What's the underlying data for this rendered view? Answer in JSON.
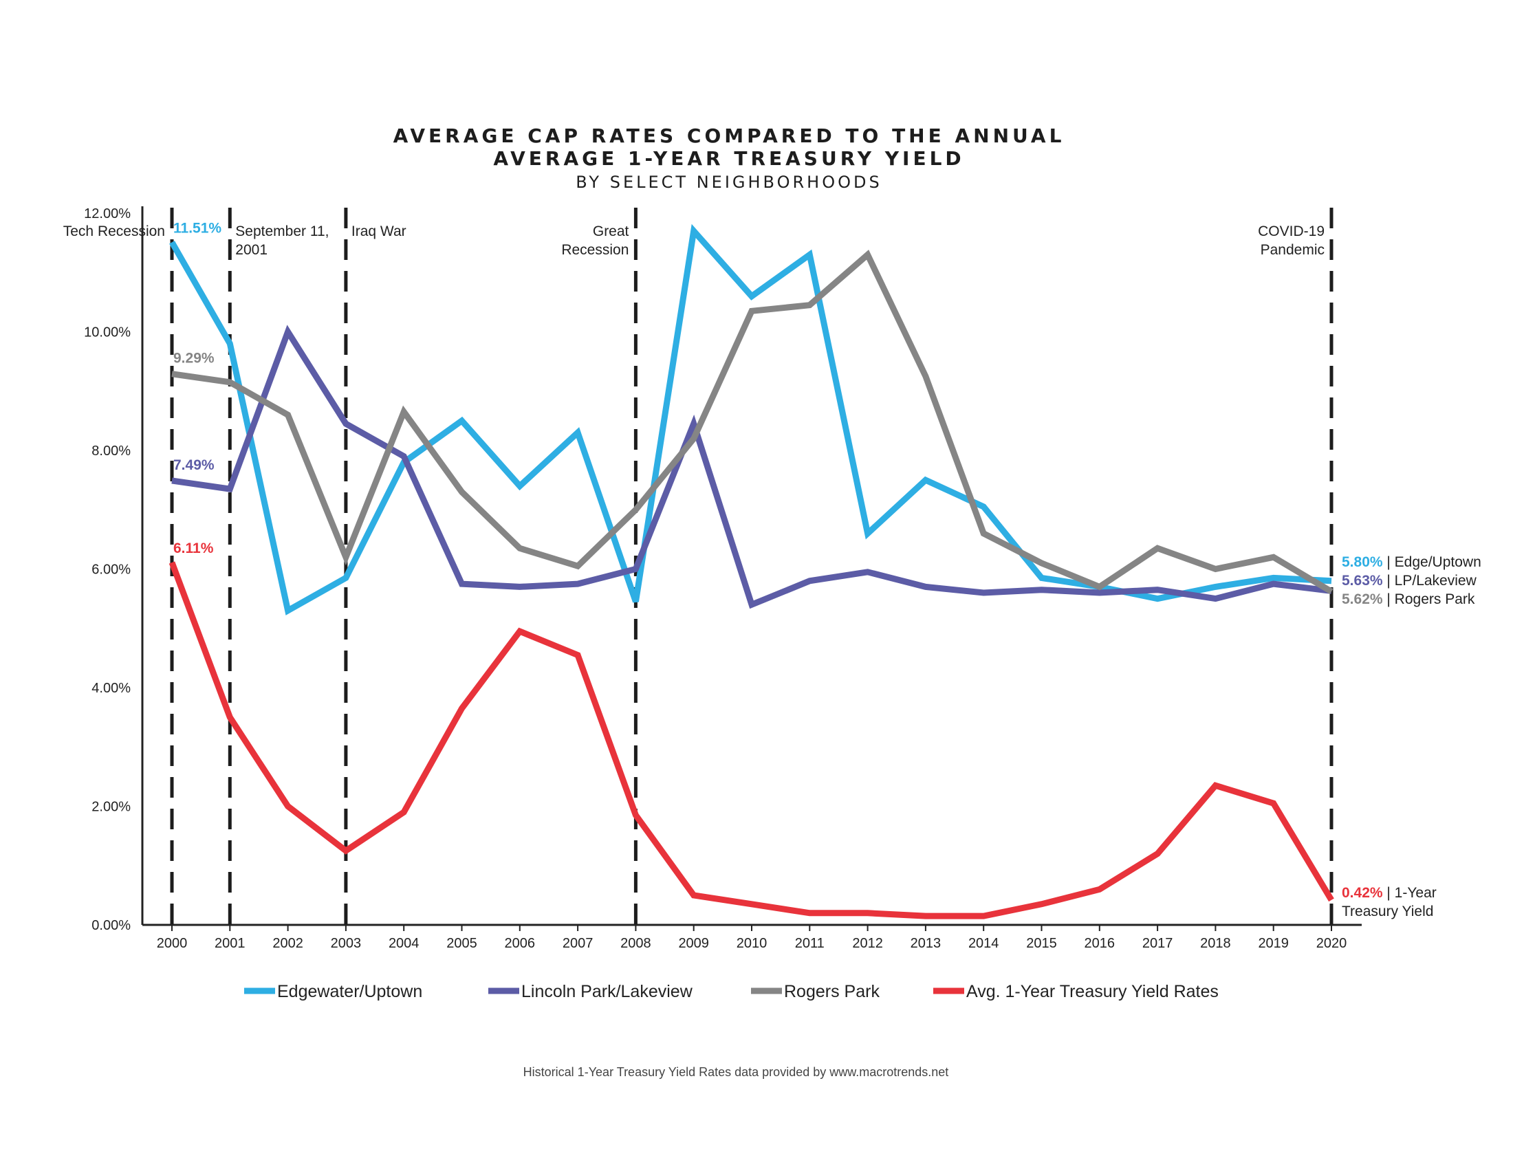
{
  "title": {
    "line1": "AVERAGE CAP RATES COMPARED TO THE ANNUAL",
    "line2": "AVERAGE 1-YEAR TREASURY YIELD",
    "subtitle": "BY SELECT NEIGHBORHOODS"
  },
  "source_note": "Historical 1-Year Treasury Yield Rates data provided by www.macrotrends.net",
  "colors": {
    "edgewater": "#2eaee3",
    "lincoln": "#5c5ca6",
    "rogers": "#858585",
    "treasury": "#e8333b",
    "axis": "#222222"
  },
  "chart_data": {
    "type": "line",
    "x": [
      2000,
      2001,
      2002,
      2003,
      2004,
      2005,
      2006,
      2007,
      2008,
      2009,
      2010,
      2011,
      2012,
      2013,
      2014,
      2015,
      2016,
      2017,
      2018,
      2019,
      2020
    ],
    "ylim": [
      0,
      12
    ],
    "y_ticks": [
      "0.00%",
      "2.00%",
      "4.00%",
      "6.00%",
      "8.00%",
      "10.00%",
      "12.00%"
    ],
    "y_tick_values": [
      0,
      2,
      4,
      6,
      8,
      10,
      12
    ],
    "series": [
      {
        "name": "Edgewater/Uptown",
        "color_key": "edgewater",
        "values": [
          11.51,
          9.8,
          5.3,
          5.85,
          7.8,
          8.5,
          7.4,
          8.3,
          5.45,
          11.7,
          10.6,
          11.3,
          6.6,
          7.5,
          7.05,
          5.85,
          5.7,
          5.5,
          5.7,
          5.85,
          5.8
        ]
      },
      {
        "name": "Lincoln Park/Lakeview",
        "color_key": "lincoln",
        "values": [
          7.49,
          7.35,
          10.0,
          8.45,
          7.9,
          5.75,
          5.7,
          5.75,
          6.0,
          8.45,
          5.4,
          5.8,
          5.95,
          5.7,
          5.6,
          5.65,
          5.6,
          5.65,
          5.5,
          5.75,
          5.63
        ]
      },
      {
        "name": "Rogers Park",
        "color_key": "rogers",
        "values": [
          9.29,
          9.15,
          8.6,
          6.2,
          8.65,
          7.3,
          6.35,
          6.05,
          7.0,
          8.2,
          10.35,
          10.45,
          11.3,
          9.25,
          6.6,
          6.1,
          5.7,
          6.35,
          6.0,
          6.2,
          5.62
        ]
      },
      {
        "name": "Avg. 1-Year Treasury Yield Rates",
        "color_key": "treasury",
        "values": [
          6.11,
          3.5,
          2.0,
          1.25,
          1.9,
          3.65,
          4.95,
          4.55,
          1.85,
          0.5,
          0.35,
          0.2,
          0.2,
          0.15,
          0.15,
          0.35,
          0.6,
          1.2,
          2.35,
          2.05,
          0.42
        ]
      }
    ],
    "events": [
      {
        "year": 2000,
        "lines": [
          "Tech Recession"
        ],
        "side": "left"
      },
      {
        "year": 2001,
        "lines": [
          "September 11,",
          "2001"
        ],
        "side": "right"
      },
      {
        "year": 2003,
        "lines": [
          "Iraq War"
        ],
        "side": "right"
      },
      {
        "year": 2008,
        "lines": [
          "Great",
          "Recession"
        ],
        "side": "left"
      },
      {
        "year": 2020,
        "lines": [
          "COVID-19",
          "Pandemic"
        ],
        "side": "left"
      }
    ],
    "start_labels": [
      {
        "text": "11.51%",
        "series": 0
      },
      {
        "text": "9.29%",
        "series": 2
      },
      {
        "text": "7.49%",
        "series": 1
      },
      {
        "text": "6.11%",
        "series": 3
      }
    ],
    "end_labels": [
      {
        "value": "5.80%",
        "suffix": " | Edge/Uptown",
        "series": 0
      },
      {
        "value": "5.63%",
        "suffix": " | LP/Lakeview",
        "series": 1
      },
      {
        "value": "5.62%",
        "suffix": " | Rogers Park",
        "series": 2
      },
      {
        "value": "0.42%",
        "suffix": " | 1-Year",
        "suffix2": "Treasury Yield",
        "series": 3
      }
    ],
    "legend_position": "bottom",
    "grid": false
  }
}
